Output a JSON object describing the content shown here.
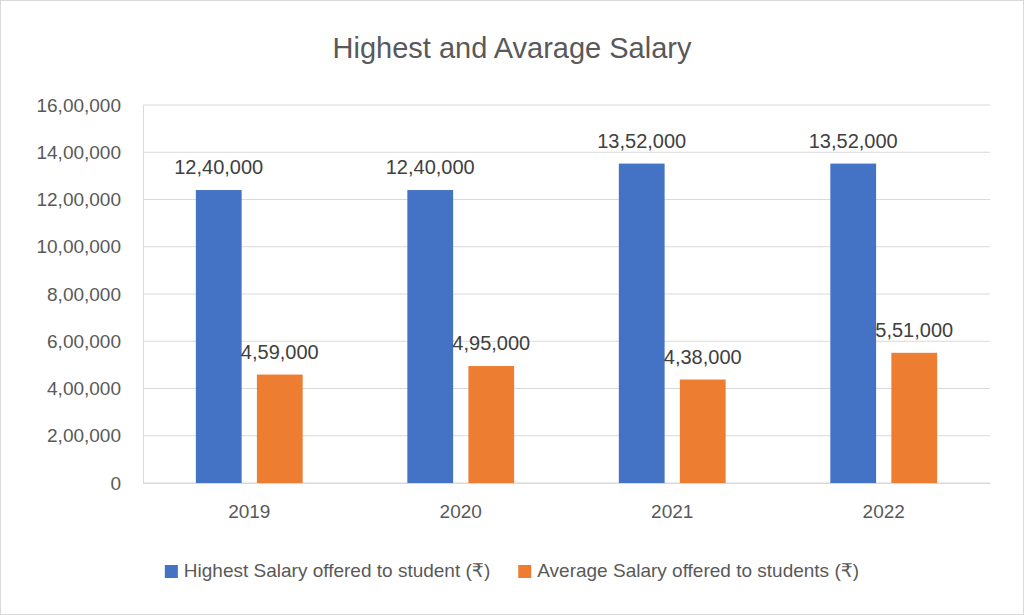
{
  "chart_data": {
    "type": "bar",
    "title": "Highest and Avarage Salary",
    "categories": [
      "2019",
      "2020",
      "2021",
      "2022"
    ],
    "series": [
      {
        "name": "Highest Salary offered to student (₹)",
        "color": "#4472c4",
        "values": [
          1240000,
          1240000,
          1352000,
          1352000
        ],
        "value_labels": [
          "12,40,000",
          "12,40,000",
          "13,52,000",
          "13,52,000"
        ]
      },
      {
        "name": "Average Salary offered to students (₹)",
        "color": "#ed7d31",
        "values": [
          459000,
          495000,
          438000,
          551000
        ],
        "value_labels": [
          "4,59,000",
          "4,95,000",
          "4,38,000",
          "5,51,000"
        ]
      }
    ],
    "ylim": [
      0,
      1600000
    ],
    "yticks": [
      0,
      {
        "value": 200000,
        "label": "2,00,000"
      },
      {
        "value": 400000,
        "label": "4,00,000"
      },
      {
        "value": 600000,
        "label": "6,00,000"
      },
      {
        "value": 800000,
        "label": "8,00,000"
      },
      {
        "value": 1000000,
        "label": "10,00,000"
      },
      {
        "value": 1200000,
        "label": "12,00,000"
      },
      {
        "value": 1400000,
        "label": "14,00,000"
      },
      {
        "value": 1600000,
        "label": "16,00,000"
      }
    ],
    "grid": true,
    "legend": "bottom",
    "data_labels": true
  }
}
